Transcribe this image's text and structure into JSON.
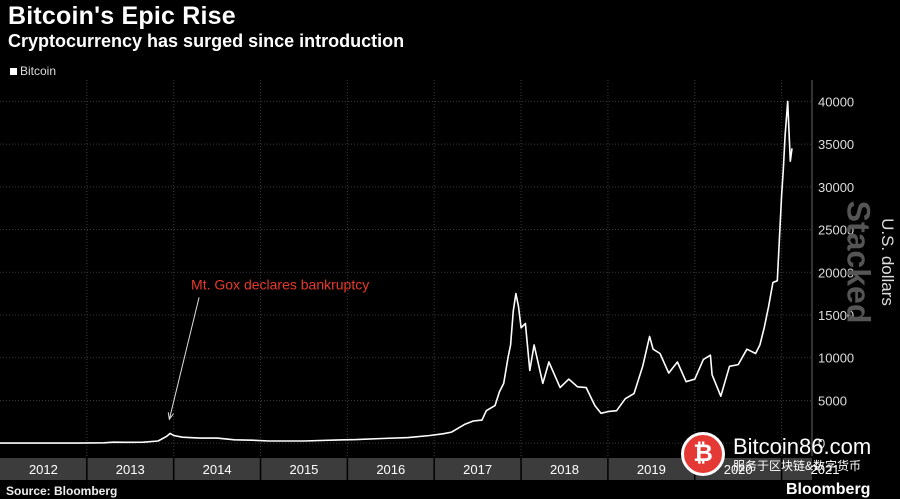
{
  "chart_data": {
    "type": "line",
    "title": "Bitcoin's Epic Rise",
    "subtitle": "Cryptocurrency has surged since introduction",
    "ylabel": "U.S. dollars",
    "xlabel": "",
    "ylim": [
      -1500,
      42500
    ],
    "xlim": [
      2012.0,
      2021.35
    ],
    "yticks": [
      0,
      5000,
      10000,
      15000,
      20000,
      25000,
      30000,
      35000,
      40000
    ],
    "xtick_labels": [
      "2012",
      "2013",
      "2014",
      "2015",
      "2016",
      "2017",
      "2018",
      "2019",
      "2020",
      "2021"
    ],
    "grid": true,
    "legend": "top-left",
    "series": [
      {
        "name": "Bitcoin",
        "color": "#ffffff",
        "x": [
          2012.0,
          2012.5,
          2012.9,
          2013.2,
          2013.3,
          2013.45,
          2013.65,
          2013.82,
          2013.92,
          2013.96,
          2014.0,
          2014.1,
          2014.3,
          2014.5,
          2014.7,
          2014.9,
          2015.1,
          2015.5,
          2015.9,
          2016.1,
          2016.4,
          2016.7,
          2016.95,
          2017.1,
          2017.2,
          2017.35,
          2017.45,
          2017.55,
          2017.6,
          2017.7,
          2017.75,
          2017.8,
          2017.85,
          2017.88,
          2017.91,
          2017.94,
          2017.97,
          2018.0,
          2018.05,
          2018.1,
          2018.15,
          2018.25,
          2018.32,
          2018.45,
          2018.55,
          2018.65,
          2018.75,
          2018.85,
          2018.92,
          2019.0,
          2019.1,
          2019.2,
          2019.3,
          2019.4,
          2019.48,
          2019.52,
          2019.6,
          2019.7,
          2019.8,
          2019.9,
          2020.0,
          2020.1,
          2020.18,
          2020.2,
          2020.3,
          2020.4,
          2020.5,
          2020.6,
          2020.7,
          2020.75,
          2020.8,
          2020.85,
          2020.9,
          2020.95,
          2021.0,
          2021.02,
          2021.04,
          2021.07,
          2021.1,
          2021.12
        ],
        "y": [
          5,
          6,
          12,
          40,
          120,
          100,
          110,
          250,
          800,
          1150,
          900,
          700,
          600,
          600,
          400,
          350,
          250,
          250,
          380,
          420,
          550,
          650,
          900,
          1100,
          1300,
          2200,
          2600,
          2700,
          3800,
          4400,
          6000,
          7000,
          10000,
          11500,
          15500,
          17500,
          16000,
          13500,
          14000,
          8500,
          11500,
          7000,
          9500,
          6500,
          7500,
          6600,
          6500,
          4400,
          3500,
          3700,
          3800,
          5200,
          5800,
          9000,
          12500,
          11000,
          10500,
          8200,
          9500,
          7200,
          7500,
          9800,
          10300,
          8000,
          5500,
          9000,
          9200,
          11000,
          10500,
          11500,
          13500,
          16000,
          18800,
          19000,
          29000,
          32000,
          36000,
          40000,
          33000,
          34500
        ]
      }
    ],
    "annotations": [
      {
        "text": "Mt. Gox declares bankruptcy",
        "x": 2014.2,
        "y": 18000,
        "target_x": 2013.95,
        "target_y": 2800,
        "color": "#e8392a"
      }
    ]
  },
  "footer": {
    "source": "Source: Bloomberg",
    "brand": "Bloomberg"
  },
  "watermark": {
    "text": "Stacked",
    "site": "Bitcoin86.com",
    "tagline": "服务于区块链&数字货币",
    "logo_glyph": "₿"
  }
}
